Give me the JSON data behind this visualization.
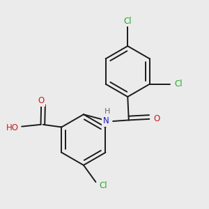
{
  "bg_color": "#ebebeb",
  "bond_color": "#1a1a1a",
  "bond_width": 1.4,
  "dbo": 0.018,
  "atom_colors": {
    "C": "#1a1a1a",
    "H": "#6a6a6a",
    "N": "#1a1acc",
    "O": "#cc1a1a",
    "Cl": "#22aa22"
  },
  "font_size": 8.5,
  "fig_size": [
    3.0,
    3.0
  ],
  "dpi": 100
}
